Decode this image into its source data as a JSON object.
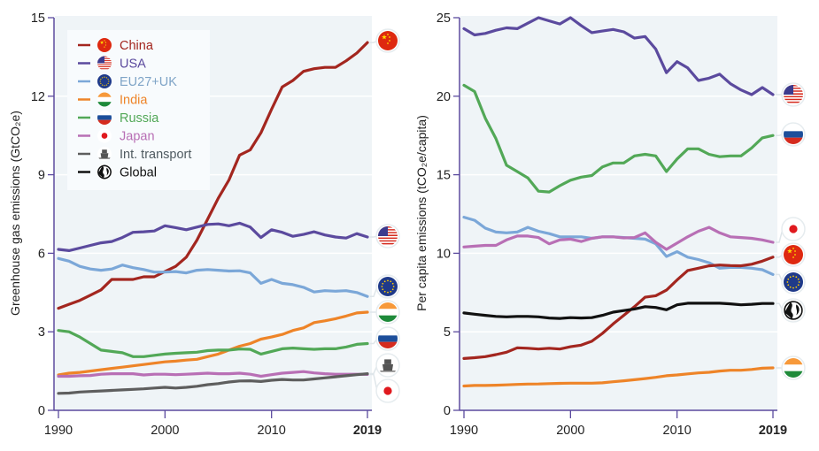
{
  "chart_data": [
    {
      "id": "total",
      "type": "line",
      "title": "",
      "xlabel": "",
      "ylabel": "Greenhouse gas emissions (GtCO₂e)",
      "xlim": [
        1990,
        2019
      ],
      "ylim": [
        0,
        15
      ],
      "yticks": [
        0,
        3,
        6,
        9,
        12,
        15
      ],
      "xticks": [
        {
          "value": 1990,
          "label": "1990",
          "bold": false
        },
        {
          "value": 2000,
          "label": "2000",
          "bold": false
        },
        {
          "value": 2010,
          "label": "2010",
          "bold": false
        },
        {
          "value": 2019,
          "label": "2019",
          "bold": true
        }
      ],
      "grid": true,
      "legend": {
        "placement": "top-left",
        "entries": [
          {
            "key": "china",
            "label": "China",
            "icon": "china-flag-icon"
          },
          {
            "key": "usa",
            "label": "USA",
            "icon": "usa-flag-icon"
          },
          {
            "key": "eu",
            "label": "EU27+UK",
            "icon": "eu-flag-icon"
          },
          {
            "key": "india",
            "label": "India",
            "icon": "india-flag-icon"
          },
          {
            "key": "russia",
            "label": "Russia",
            "icon": "russia-flag-icon"
          },
          {
            "key": "japan",
            "label": "Japan",
            "icon": "japan-flag-icon"
          },
          {
            "key": "transport",
            "label": "Int. transport",
            "icon": "ship-icon"
          },
          {
            "key": "global",
            "label": "Global",
            "icon": "globe-icon"
          }
        ]
      },
      "x": [
        1990,
        1991,
        1992,
        1993,
        1994,
        1995,
        1996,
        1997,
        1998,
        1999,
        2000,
        2001,
        2002,
        2003,
        2004,
        2005,
        2006,
        2007,
        2008,
        2009,
        2010,
        2011,
        2012,
        2013,
        2014,
        2015,
        2016,
        2017,
        2018,
        2019
      ],
      "series": [
        {
          "key": "china",
          "name": "China",
          "values": [
            3.9,
            4.05,
            4.2,
            4.4,
            4.6,
            5.0,
            5.0,
            5.0,
            5.1,
            5.1,
            5.3,
            5.5,
            5.85,
            6.5,
            7.3,
            8.1,
            8.8,
            9.75,
            9.95,
            10.6,
            11.5,
            12.35,
            12.6,
            12.95,
            13.05,
            13.1,
            13.1,
            13.35,
            13.65,
            14.05
          ]
        },
        {
          "key": "usa",
          "name": "USA",
          "values": [
            6.15,
            6.1,
            6.2,
            6.3,
            6.4,
            6.45,
            6.6,
            6.8,
            6.82,
            6.85,
            7.05,
            6.98,
            6.9,
            7.0,
            7.1,
            7.12,
            7.05,
            7.15,
            7.0,
            6.6,
            6.9,
            6.8,
            6.65,
            6.72,
            6.82,
            6.7,
            6.62,
            6.58,
            6.75,
            6.62
          ]
        },
        {
          "key": "eu",
          "name": "EU27+UK",
          "values": [
            5.8,
            5.7,
            5.5,
            5.4,
            5.35,
            5.4,
            5.55,
            5.45,
            5.38,
            5.28,
            5.28,
            5.3,
            5.25,
            5.35,
            5.38,
            5.35,
            5.32,
            5.33,
            5.25,
            4.85,
            5.0,
            4.85,
            4.8,
            4.7,
            4.52,
            4.57,
            4.55,
            4.57,
            4.5,
            4.35
          ]
        },
        {
          "key": "india",
          "name": "India",
          "values": [
            1.35,
            1.42,
            1.45,
            1.5,
            1.55,
            1.6,
            1.65,
            1.7,
            1.75,
            1.8,
            1.85,
            1.88,
            1.92,
            1.95,
            2.05,
            2.15,
            2.3,
            2.45,
            2.55,
            2.72,
            2.8,
            2.9,
            3.05,
            3.15,
            3.35,
            3.42,
            3.5,
            3.6,
            3.72,
            3.75
          ]
        },
        {
          "key": "russia",
          "name": "Russia",
          "values": [
            3.05,
            3.0,
            2.8,
            2.55,
            2.3,
            2.25,
            2.2,
            2.05,
            2.05,
            2.1,
            2.15,
            2.18,
            2.2,
            2.22,
            2.28,
            2.3,
            2.3,
            2.34,
            2.33,
            2.15,
            2.25,
            2.35,
            2.38,
            2.35,
            2.33,
            2.35,
            2.35,
            2.42,
            2.52,
            2.55
          ]
        },
        {
          "key": "japan",
          "name": "Japan",
          "values": [
            1.3,
            1.3,
            1.32,
            1.33,
            1.38,
            1.4,
            1.4,
            1.4,
            1.35,
            1.38,
            1.38,
            1.36,
            1.38,
            1.4,
            1.42,
            1.4,
            1.4,
            1.42,
            1.38,
            1.3,
            1.36,
            1.42,
            1.45,
            1.48,
            1.43,
            1.4,
            1.38,
            1.38,
            1.38,
            1.37
          ]
        },
        {
          "key": "transport",
          "name": "Int. transport",
          "values": [
            0.65,
            0.66,
            0.7,
            0.72,
            0.74,
            0.76,
            0.78,
            0.8,
            0.82,
            0.85,
            0.88,
            0.85,
            0.88,
            0.92,
            0.98,
            1.02,
            1.08,
            1.12,
            1.13,
            1.1,
            1.15,
            1.18,
            1.16,
            1.16,
            1.2,
            1.24,
            1.28,
            1.32,
            1.36,
            1.4
          ]
        }
      ],
      "end_markers_order": [
        "china",
        "usa",
        "eu",
        "india",
        "russia",
        "transport",
        "japan"
      ]
    },
    {
      "id": "per_capita",
      "type": "line",
      "title": "",
      "xlabel": "",
      "ylabel": "Per capita emissions (tCO₂e/capita)",
      "xlim": [
        1990,
        2019
      ],
      "ylim": [
        0,
        25
      ],
      "yticks": [
        0,
        5,
        10,
        15,
        20,
        25
      ],
      "xticks": [
        {
          "value": 1990,
          "label": "1990",
          "bold": false
        },
        {
          "value": 2000,
          "label": "2000",
          "bold": false
        },
        {
          "value": 2010,
          "label": "2010",
          "bold": false
        },
        {
          "value": 2019,
          "label": "2019",
          "bold": true
        }
      ],
      "grid": true,
      "x": [
        1990,
        1991,
        1992,
        1993,
        1994,
        1995,
        1996,
        1997,
        1998,
        1999,
        2000,
        2001,
        2002,
        2003,
        2004,
        2005,
        2006,
        2007,
        2008,
        2009,
        2010,
        2011,
        2012,
        2013,
        2014,
        2015,
        2016,
        2017,
        2018,
        2019
      ],
      "series": [
        {
          "key": "usa",
          "name": "USA",
          "values": [
            24.3,
            23.9,
            24.0,
            24.2,
            24.35,
            24.3,
            24.65,
            25.0,
            24.8,
            24.6,
            25.0,
            24.5,
            24.05,
            24.15,
            24.25,
            24.1,
            23.7,
            23.8,
            23.0,
            21.5,
            22.2,
            21.8,
            21.0,
            21.15,
            21.4,
            20.8,
            20.4,
            20.1,
            20.55,
            20.1
          ]
        },
        {
          "key": "russia",
          "name": "Russia",
          "values": [
            20.7,
            20.3,
            18.6,
            17.3,
            15.6,
            15.2,
            14.8,
            13.95,
            13.9,
            14.3,
            14.65,
            14.85,
            14.95,
            15.5,
            15.75,
            15.75,
            16.2,
            16.3,
            16.2,
            15.2,
            16.0,
            16.65,
            16.65,
            16.3,
            16.15,
            16.2,
            16.2,
            16.7,
            17.35,
            17.5
          ]
        },
        {
          "key": "eu",
          "name": "EU27+UK",
          "values": [
            12.3,
            12.1,
            11.6,
            11.35,
            11.3,
            11.35,
            11.65,
            11.4,
            11.25,
            11.05,
            11.05,
            11.05,
            10.95,
            11.05,
            11.05,
            11.0,
            10.95,
            10.9,
            10.6,
            9.8,
            10.1,
            9.75,
            9.6,
            9.4,
            9.05,
            9.1,
            9.1,
            9.05,
            8.95,
            8.65
          ]
        },
        {
          "key": "japan",
          "name": "Japan",
          "values": [
            10.4,
            10.45,
            10.5,
            10.5,
            10.85,
            11.1,
            11.1,
            11.0,
            10.6,
            10.85,
            10.9,
            10.75,
            10.95,
            11.05,
            11.05,
            10.98,
            11.0,
            11.3,
            10.7,
            10.25,
            10.65,
            11.05,
            11.4,
            11.65,
            11.3,
            11.05,
            11.0,
            10.95,
            10.85,
            10.7
          ]
        },
        {
          "key": "china",
          "name": "China",
          "values": [
            3.3,
            3.35,
            3.42,
            3.55,
            3.7,
            3.98,
            3.95,
            3.9,
            3.95,
            3.9,
            4.05,
            4.15,
            4.4,
            4.9,
            5.5,
            6.05,
            6.6,
            7.2,
            7.3,
            7.65,
            8.3,
            8.9,
            9.05,
            9.2,
            9.25,
            9.22,
            9.2,
            9.3,
            9.5,
            9.75
          ]
        },
        {
          "key": "global",
          "name": "Global",
          "values": [
            6.2,
            6.12,
            6.05,
            5.98,
            5.95,
            5.98,
            5.98,
            5.95,
            5.88,
            5.85,
            5.9,
            5.88,
            5.9,
            6.05,
            6.25,
            6.35,
            6.45,
            6.6,
            6.55,
            6.4,
            6.72,
            6.82,
            6.82,
            6.82,
            6.82,
            6.78,
            6.72,
            6.75,
            6.8,
            6.8
          ]
        },
        {
          "key": "india",
          "name": "India",
          "values": [
            1.55,
            1.58,
            1.58,
            1.6,
            1.62,
            1.65,
            1.67,
            1.68,
            1.7,
            1.72,
            1.73,
            1.73,
            1.73,
            1.75,
            1.82,
            1.88,
            1.95,
            2.02,
            2.1,
            2.2,
            2.25,
            2.32,
            2.38,
            2.42,
            2.5,
            2.55,
            2.55,
            2.6,
            2.68,
            2.7
          ]
        }
      ],
      "end_markers_order": [
        "usa",
        "russia",
        "japan",
        "china",
        "eu",
        "global",
        "india"
      ]
    }
  ],
  "colors": {
    "china": "#a3261f",
    "usa": "#5b4a9e",
    "eu": "#7ba7d8",
    "india": "#ee8428",
    "russia": "#52a857",
    "japan": "#b86fb5",
    "transport": "#5e5e5e",
    "global": "#111111",
    "axis": "#5b4a9e",
    "plot_bg": "#eff4f7"
  }
}
